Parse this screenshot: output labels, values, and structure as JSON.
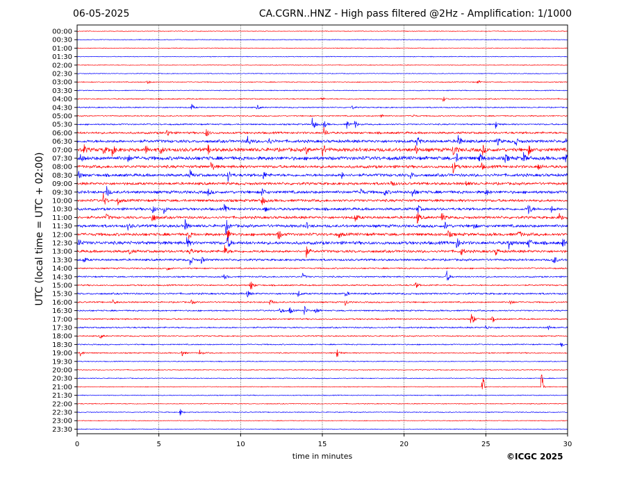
{
  "header": {
    "date": "06-05-2025",
    "title": "CA.CGRN..HNZ - High pass filtered @2Hz - Amplification: 1/1000"
  },
  "footer": {
    "copyright": "©ICGC 2025"
  },
  "chart_data": {
    "type": "line",
    "title": "CA.CGRN..HNZ - High pass filtered @2Hz - Amplification: 1/1000",
    "xlabel": "time in minutes",
    "ylabel": "UTC (local time = UTC + 02:00)",
    "xlim": [
      0,
      30
    ],
    "x_ticks": [
      0,
      5,
      10,
      15,
      20,
      25,
      30
    ],
    "grid_x": [
      5,
      10,
      15,
      20,
      25
    ],
    "row_labels": [
      "00:00",
      "00:30",
      "01:00",
      "01:30",
      "02:00",
      "02:30",
      "03:00",
      "03:30",
      "04:00",
      "04:30",
      "05:00",
      "05:30",
      "06:00",
      "06:30",
      "07:00",
      "07:30",
      "08:00",
      "08:30",
      "09:00",
      "09:30",
      "10:00",
      "10:30",
      "11:00",
      "11:30",
      "12:00",
      "12:30",
      "13:00",
      "13:30",
      "14:00",
      "14:30",
      "15:00",
      "15:30",
      "16:00",
      "16:30",
      "17:00",
      "17:30",
      "18:00",
      "18:30",
      "19:00",
      "19:30",
      "20:00",
      "20:30",
      "21:00",
      "21:30",
      "22:00",
      "22:30",
      "23:00",
      "23:30"
    ],
    "colors": {
      "even_rows": "#ff0000",
      "odd_rows": "#0000ff"
    },
    "noise_level": [
      0.5,
      0.5,
      0.5,
      0.5,
      0.5,
      0.5,
      0.6,
      0.6,
      0.8,
      0.8,
      0.8,
      1.0,
      1.5,
      2.0,
      2.5,
      2.5,
      2.0,
      2.0,
      1.8,
      2.0,
      1.8,
      1.8,
      1.8,
      2.0,
      2.0,
      2.2,
      1.8,
      1.5,
      1.0,
      1.0,
      1.0,
      1.2,
      1.0,
      1.0,
      1.0,
      1.0,
      0.8,
      0.8,
      0.8,
      0.6,
      0.6,
      0.6,
      0.5,
      0.6,
      0.6,
      0.6,
      0.5,
      0.5
    ],
    "events": [
      {
        "row": 6,
        "t": 4.3,
        "amp": 3
      },
      {
        "row": 6,
        "t": 24.5,
        "amp": 3
      },
      {
        "row": 8,
        "t": 14.9,
        "amp": 4
      },
      {
        "row": 8,
        "t": 22.4,
        "amp": 4
      },
      {
        "row": 9,
        "t": 7.0,
        "amp": 5
      },
      {
        "row": 9,
        "t": 11.0,
        "amp": 4
      },
      {
        "row": 9,
        "t": 16.8,
        "amp": 3
      },
      {
        "row": 10,
        "t": 18.6,
        "amp": 4
      },
      {
        "row": 10,
        "t": 20.5,
        "amp": 3
      },
      {
        "row": 11,
        "t": 14.4,
        "amp": 14
      },
      {
        "row": 11,
        "t": 15.1,
        "amp": 6
      },
      {
        "row": 11,
        "t": 16.5,
        "amp": 6
      },
      {
        "row": 11,
        "t": 17.0,
        "amp": 6
      },
      {
        "row": 11,
        "t": 25.6,
        "amp": 6
      },
      {
        "row": 12,
        "t": 5.5,
        "amp": 7
      },
      {
        "row": 12,
        "t": 7.9,
        "amp": 7
      },
      {
        "row": 12,
        "t": 15.1,
        "amp": 8
      },
      {
        "row": 13,
        "t": 10.4,
        "amp": 10
      },
      {
        "row": 13,
        "t": 11.7,
        "amp": 6
      },
      {
        "row": 13,
        "t": 20.8,
        "amp": 9
      },
      {
        "row": 13,
        "t": 23.3,
        "amp": 12
      },
      {
        "row": 13,
        "t": 25.7,
        "amp": 6
      },
      {
        "row": 13,
        "t": 26.8,
        "amp": 7
      },
      {
        "row": 13,
        "t": 29.9,
        "amp": 9
      },
      {
        "row": 14,
        "t": 0.4,
        "amp": 7
      },
      {
        "row": 14,
        "t": 1.6,
        "amp": 6
      },
      {
        "row": 14,
        "t": 2.1,
        "amp": 12
      },
      {
        "row": 14,
        "t": 4.2,
        "amp": 6
      },
      {
        "row": 14,
        "t": 5.1,
        "amp": 7
      },
      {
        "row": 14,
        "t": 8.0,
        "amp": 6
      },
      {
        "row": 14,
        "t": 14.0,
        "amp": 6
      },
      {
        "row": 14,
        "t": 15.0,
        "amp": 12
      },
      {
        "row": 14,
        "t": 20.7,
        "amp": 6
      },
      {
        "row": 14,
        "t": 23.0,
        "amp": 10
      },
      {
        "row": 14,
        "t": 24.8,
        "amp": 7
      },
      {
        "row": 14,
        "t": 27.6,
        "amp": 7
      },
      {
        "row": 15,
        "t": 0.2,
        "amp": 6
      },
      {
        "row": 15,
        "t": 3.1,
        "amp": 6
      },
      {
        "row": 15,
        "t": 23.2,
        "amp": 6
      },
      {
        "row": 15,
        "t": 24.6,
        "amp": 10
      },
      {
        "row": 15,
        "t": 26.2,
        "amp": 6
      },
      {
        "row": 15,
        "t": 27.3,
        "amp": 7
      },
      {
        "row": 15,
        "t": 29.9,
        "amp": 6
      },
      {
        "row": 16,
        "t": 8.2,
        "amp": 8
      },
      {
        "row": 16,
        "t": 23.0,
        "amp": 10
      },
      {
        "row": 16,
        "t": 24.7,
        "amp": 6
      },
      {
        "row": 16,
        "t": 28.2,
        "amp": 6
      },
      {
        "row": 17,
        "t": 0.1,
        "amp": 5
      },
      {
        "row": 17,
        "t": 6.9,
        "amp": 7
      },
      {
        "row": 17,
        "t": 9.2,
        "amp": 12
      },
      {
        "row": 17,
        "t": 11.4,
        "amp": 6
      },
      {
        "row": 17,
        "t": 16.2,
        "amp": 5
      },
      {
        "row": 17,
        "t": 20.4,
        "amp": 5
      },
      {
        "row": 18,
        "t": 19.2,
        "amp": 6
      },
      {
        "row": 18,
        "t": 23.8,
        "amp": 5
      },
      {
        "row": 19,
        "t": 1.8,
        "amp": 8
      },
      {
        "row": 19,
        "t": 8.0,
        "amp": 5
      },
      {
        "row": 19,
        "t": 11.3,
        "amp": 7
      },
      {
        "row": 19,
        "t": 17.3,
        "amp": 7
      },
      {
        "row": 19,
        "t": 18.8,
        "amp": 5
      },
      {
        "row": 19,
        "t": 20.5,
        "amp": 8
      },
      {
        "row": 19,
        "t": 25.0,
        "amp": 5
      },
      {
        "row": 20,
        "t": 1.6,
        "amp": 10
      },
      {
        "row": 20,
        "t": 2.5,
        "amp": 5
      },
      {
        "row": 20,
        "t": 11.3,
        "amp": 8
      },
      {
        "row": 21,
        "t": 4.6,
        "amp": 7
      },
      {
        "row": 21,
        "t": 5.3,
        "amp": 6
      },
      {
        "row": 21,
        "t": 9.0,
        "amp": 6
      },
      {
        "row": 21,
        "t": 11.5,
        "amp": 6
      },
      {
        "row": 21,
        "t": 20.8,
        "amp": 9
      },
      {
        "row": 21,
        "t": 27.6,
        "amp": 10
      },
      {
        "row": 21,
        "t": 29.0,
        "amp": 5
      },
      {
        "row": 22,
        "t": 1.8,
        "amp": 5
      },
      {
        "row": 22,
        "t": 4.6,
        "amp": 9
      },
      {
        "row": 22,
        "t": 17.0,
        "amp": 7
      },
      {
        "row": 22,
        "t": 20.8,
        "amp": 9
      },
      {
        "row": 22,
        "t": 22.3,
        "amp": 7
      },
      {
        "row": 22,
        "t": 29.5,
        "amp": 6
      },
      {
        "row": 23,
        "t": 3.1,
        "amp": 5
      },
      {
        "row": 23,
        "t": 6.6,
        "amp": 8
      },
      {
        "row": 23,
        "t": 9.1,
        "amp": 10
      },
      {
        "row": 23,
        "t": 14.0,
        "amp": 5
      },
      {
        "row": 23,
        "t": 22.5,
        "amp": 6
      },
      {
        "row": 23,
        "t": 24.2,
        "amp": 5
      },
      {
        "row": 24,
        "t": 6.8,
        "amp": 7
      },
      {
        "row": 24,
        "t": 9.2,
        "amp": 10
      },
      {
        "row": 24,
        "t": 12.3,
        "amp": 10
      },
      {
        "row": 24,
        "t": 16.0,
        "amp": 5
      },
      {
        "row": 24,
        "t": 22.7,
        "amp": 5
      },
      {
        "row": 24,
        "t": 27.0,
        "amp": 6
      },
      {
        "row": 25,
        "t": 0.1,
        "amp": 6
      },
      {
        "row": 25,
        "t": 6.7,
        "amp": 8
      },
      {
        "row": 25,
        "t": 9.2,
        "amp": 10
      },
      {
        "row": 25,
        "t": 23.2,
        "amp": 9
      },
      {
        "row": 25,
        "t": 26.4,
        "amp": 8
      },
      {
        "row": 25,
        "t": 27.6,
        "amp": 9
      },
      {
        "row": 25,
        "t": 29.7,
        "amp": 6
      },
      {
        "row": 26,
        "t": 3.2,
        "amp": 5
      },
      {
        "row": 26,
        "t": 6.9,
        "amp": 6
      },
      {
        "row": 26,
        "t": 9.0,
        "amp": 10
      },
      {
        "row": 26,
        "t": 14.0,
        "amp": 9
      },
      {
        "row": 26,
        "t": 23.5,
        "amp": 6
      },
      {
        "row": 26,
        "t": 25.6,
        "amp": 6
      },
      {
        "row": 27,
        "t": 0.4,
        "amp": 5
      },
      {
        "row": 27,
        "t": 6.9,
        "amp": 8
      },
      {
        "row": 27,
        "t": 7.6,
        "amp": 5
      },
      {
        "row": 27,
        "t": 29.1,
        "amp": 12
      },
      {
        "row": 28,
        "t": 5.5,
        "amp": 4
      },
      {
        "row": 29,
        "t": 9.0,
        "amp": 5
      },
      {
        "row": 29,
        "t": 13.8,
        "amp": 5
      },
      {
        "row": 29,
        "t": 22.6,
        "amp": 10
      },
      {
        "row": 30,
        "t": 10.6,
        "amp": 10
      },
      {
        "row": 30,
        "t": 20.7,
        "amp": 5
      },
      {
        "row": 31,
        "t": 10.4,
        "amp": 5
      },
      {
        "row": 31,
        "t": 13.5,
        "amp": 5
      },
      {
        "row": 31,
        "t": 16.4,
        "amp": 5
      },
      {
        "row": 32,
        "t": 2.2,
        "amp": 4
      },
      {
        "row": 32,
        "t": 7.0,
        "amp": 4
      },
      {
        "row": 32,
        "t": 11.8,
        "amp": 5
      },
      {
        "row": 32,
        "t": 16.4,
        "amp": 5
      },
      {
        "row": 32,
        "t": 26.5,
        "amp": 5
      },
      {
        "row": 33,
        "t": 12.4,
        "amp": 6
      },
      {
        "row": 33,
        "t": 13.0,
        "amp": 6
      },
      {
        "row": 33,
        "t": 13.9,
        "amp": 7
      },
      {
        "row": 33,
        "t": 14.6,
        "amp": 5
      },
      {
        "row": 34,
        "t": 24.1,
        "amp": 14
      },
      {
        "row": 34,
        "t": 25.4,
        "amp": 5
      },
      {
        "row": 35,
        "t": 25.0,
        "amp": 4
      },
      {
        "row": 35,
        "t": 28.8,
        "amp": 4
      },
      {
        "row": 36,
        "t": 1.4,
        "amp": 4
      },
      {
        "row": 37,
        "t": 29.6,
        "amp": 4
      },
      {
        "row": 38,
        "t": 0.2,
        "amp": 6
      },
      {
        "row": 38,
        "t": 6.4,
        "amp": 5
      },
      {
        "row": 38,
        "t": 7.5,
        "amp": 5
      },
      {
        "row": 38,
        "t": 15.9,
        "amp": 8
      },
      {
        "row": 42,
        "t": 24.8,
        "amp": 55
      },
      {
        "row": 42,
        "t": 28.4,
        "amp": 65
      },
      {
        "row": 45,
        "t": 6.3,
        "amp": 5
      }
    ]
  }
}
